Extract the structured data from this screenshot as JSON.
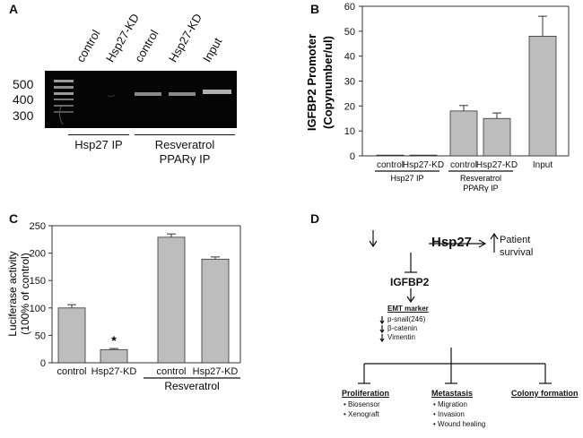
{
  "panels": {
    "A": {
      "letter": "A",
      "lanes": [
        "control",
        "Hsp27-KD",
        "control",
        "Hsp27-KD",
        "Input"
      ],
      "markers": [
        "500",
        "400",
        "300"
      ],
      "groups": [
        "Hsp27 IP",
        "Resveratrol",
        "PPARγ IP"
      ]
    },
    "B": {
      "letter": "B"
    },
    "C": {
      "letter": "C"
    },
    "D": {
      "letter": "D",
      "hsp27": "Hsp27",
      "patient_survival": [
        "Patient",
        "survival"
      ],
      "igfbp2": "IGFBP2",
      "emt_title": "EMT marker",
      "emt_items": [
        "p-snail(246)",
        "β-catenin",
        "Vimentin"
      ],
      "outcomes": [
        {
          "title": "Proliferation",
          "items": [
            "Biosensor",
            "Xenograft"
          ]
        },
        {
          "title": "Metastasis",
          "items": [
            "Migration",
            "Invasion",
            "Wound healing"
          ]
        },
        {
          "title": "Colony formation",
          "items": []
        }
      ]
    }
  },
  "chart_data": [
    {
      "type": "bar",
      "panel": "B",
      "categories": [
        "control",
        "Hsp27-KD",
        "control",
        "Hsp27-KD",
        "Input"
      ],
      "values": [
        0.3,
        0.3,
        18,
        15,
        48
      ],
      "errors": [
        0.2,
        0.2,
        2.2,
        2.2,
        8
      ],
      "group_labels": [
        "Hsp27 IP",
        "Resveratrol",
        "PPARγ IP"
      ],
      "ylabel": "IGFBP2 Promoter (Copynumber/ul)",
      "ylim": [
        0,
        60
      ],
      "yticks": [
        0,
        10,
        20,
        30,
        40,
        50,
        60
      ],
      "bar_color": "#bdbdbd"
    },
    {
      "type": "bar",
      "panel": "C",
      "categories": [
        "control",
        "Hsp27-KD",
        "control",
        "Hsp27-KD"
      ],
      "values": [
        100,
        24,
        229,
        189
      ],
      "errors": [
        6,
        2,
        6,
        4
      ],
      "annotations": [
        "",
        "*",
        "",
        ""
      ],
      "group_labels": [
        "Resveratrol"
      ],
      "ylabel": "Luciferase activity (100% of control)",
      "ylim": [
        0,
        250
      ],
      "yticks": [
        0,
        50,
        100,
        150,
        200,
        250
      ],
      "bar_color": "#bdbdbd"
    }
  ]
}
